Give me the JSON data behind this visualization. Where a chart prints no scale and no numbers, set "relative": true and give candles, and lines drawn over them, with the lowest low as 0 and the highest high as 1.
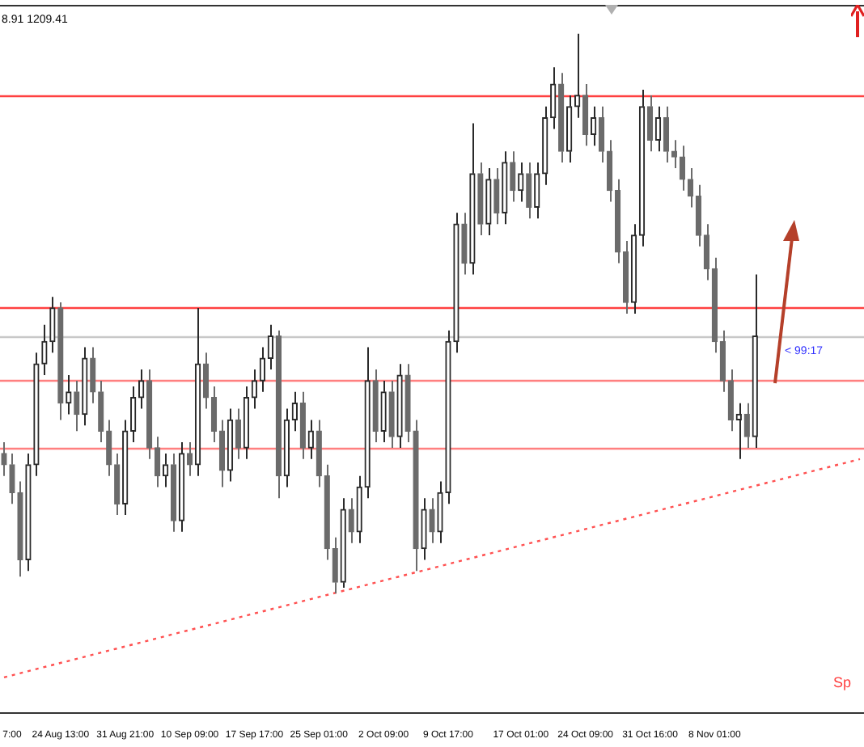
{
  "chart_data": {
    "type": "candlestick",
    "relative": true,
    "colors": [
      "#6b6b6b",
      "#6b6b6b",
      "#6b6b6b",
      "#2a2a2a",
      "#2a2a2a",
      "#2a2a2a",
      "#2a2a2a",
      "#6b6b6b",
      "#2a2a2a",
      "#6b6b6b",
      "#2a2a2a",
      "#6b6b6b",
      "#6b6b6b",
      "#6b6b6b",
      "#6b6b6b",
      "#2a2a2a",
      "#2a2a2a",
      "#2a2a2a",
      "#6b6b6b",
      "#6b6b6b",
      "#2a2a2a",
      "#6b6b6b",
      "#2a2a2a",
      "#6b6b6b",
      "#2a2a2a",
      "#6b6b6b",
      "#6b6b6b",
      "#6b6b6b",
      "#2a2a2a",
      "#6b6b6b",
      "#2a2a2a",
      "#2a2a2a",
      "#2a2a2a",
      "#2a2a2a",
      "#6b6b6b",
      "#2a2a2a",
      "#2a2a2a",
      "#6b6b6b",
      "#2a2a2a",
      "#6b6b6b",
      "#6b6b6b",
      "#6b6b6b",
      "#2a2a2a",
      "#6b6b6b",
      "#2a2a2a",
      "#2a2a2a",
      "#6b6b6b",
      "#2a2a2a",
      "#6b6b6b",
      "#2a2a2a",
      "#6b6b6b",
      "#6b6b6b",
      "#2a2a2a",
      "#6b6b6b",
      "#2a2a2a",
      "#2a2a2a",
      "#2a2a2a",
      "#6b6b6b",
      "#2a2a2a",
      "#6b6b6b",
      "#2a2a2a",
      "#6b6b6b",
      "#2a2a2a",
      "#6b6b6b",
      "#2a2a2a",
      "#6b6b6b",
      "#2a2a2a",
      "#2a2a2a",
      "#2a2a2a",
      "#6b6b6b",
      "#2a2a2a",
      "#2a2a2a",
      "#6b6b6b",
      "#2a2a2a",
      "#6b6b6b",
      "#6b6b6b",
      "#6b6b6b",
      "#6b6b6b",
      "#2a2a2a",
      "#2a2a2a",
      "#6b6b6b",
      "#2a2a2a",
      "#6b6b6b",
      "#6b6b6b",
      "#6b6b6b",
      "#6b6b6b",
      "#6b6b6b",
      "#6b6b6b",
      "#6b6b6b",
      "#6b6b6b",
      "#6b6b6b",
      "#2a2a2a",
      "#6b6b6b",
      "#2a2a2a",
      null,
      null,
      null,
      null,
      null,
      null,
      null,
      null,
      null,
      null,
      null,
      null,
      null
    ],
    "categories": [
      null,
      "7:00",
      null,
      null,
      null,
      null,
      null,
      "24 Aug 13:00",
      null,
      null,
      null,
      null,
      null,
      null,
      null,
      "31 Aug 21:00",
      null,
      null,
      null,
      null,
      null,
      null,
      null,
      "10 Sep 09:00",
      null,
      null,
      null,
      null,
      null,
      null,
      null,
      "17 Sep 17:00",
      null,
      null,
      null,
      null,
      null,
      null,
      null,
      "25 Sep 01:00",
      null,
      null,
      null,
      null,
      null,
      null,
      null,
      "2 Oct 09:00",
      null,
      null,
      null,
      null,
      null,
      null,
      null,
      "9 Oct 17:00",
      null,
      null,
      null,
      null,
      null,
      null,
      null,
      null,
      "17 Oct 01:00",
      null,
      null,
      null,
      null,
      null,
      null,
      null,
      "24 Oct 09:00",
      null,
      null,
      null,
      null,
      null,
      null,
      null,
      "31 Oct 16:00",
      null,
      null,
      null,
      null,
      null,
      null,
      null,
      "8 Nov 01:00",
      null,
      null,
      null,
      null,
      null,
      null,
      null,
      null,
      null,
      null,
      null,
      null,
      null,
      null,
      null,
      null,
      null,
      null
    ],
    "ohlc": [
      [
        0.25,
        0.27,
        0.21,
        0.23
      ],
      [
        0.23,
        0.25,
        0.16,
        0.18
      ],
      [
        0.18,
        0.2,
        0.03,
        0.06
      ],
      [
        0.06,
        0.25,
        0.04,
        0.23
      ],
      [
        0.23,
        0.43,
        0.21,
        0.41
      ],
      [
        0.41,
        0.48,
        0.39,
        0.45
      ],
      [
        0.45,
        0.53,
        0.43,
        0.51
      ],
      [
        0.51,
        0.52,
        0.31,
        0.34
      ],
      [
        0.34,
        0.39,
        0.32,
        0.36
      ],
      [
        0.36,
        0.38,
        0.29,
        0.32
      ],
      [
        0.32,
        0.44,
        0.3,
        0.42
      ],
      [
        0.42,
        0.44,
        0.34,
        0.36
      ],
      [
        0.36,
        0.38,
        0.27,
        0.29
      ],
      [
        0.29,
        0.31,
        0.21,
        0.23
      ],
      [
        0.23,
        0.25,
        0.14,
        0.16
      ],
      [
        0.16,
        0.31,
        0.14,
        0.29
      ],
      [
        0.29,
        0.37,
        0.27,
        0.35
      ],
      [
        0.35,
        0.4,
        0.33,
        0.38
      ],
      [
        0.38,
        0.4,
        0.24,
        0.26
      ],
      [
        0.26,
        0.28,
        0.19,
        0.21
      ],
      [
        0.21,
        0.25,
        0.19,
        0.23
      ],
      [
        0.23,
        0.25,
        0.11,
        0.13
      ],
      [
        0.13,
        0.27,
        0.11,
        0.25
      ],
      [
        0.25,
        0.27,
        0.21,
        0.23
      ],
      [
        0.23,
        0.51,
        0.21,
        0.41
      ],
      [
        0.41,
        0.43,
        0.33,
        0.35
      ],
      [
        0.35,
        0.37,
        0.27,
        0.29
      ],
      [
        0.29,
        0.31,
        0.19,
        0.22
      ],
      [
        0.22,
        0.33,
        0.2,
        0.31
      ],
      [
        0.31,
        0.33,
        0.24,
        0.26
      ],
      [
        0.26,
        0.37,
        0.24,
        0.35
      ],
      [
        0.35,
        0.4,
        0.33,
        0.38
      ],
      [
        0.38,
        0.44,
        0.36,
        0.42
      ],
      [
        0.42,
        0.48,
        0.4,
        0.46
      ],
      [
        0.46,
        0.47,
        0.17,
        0.21
      ],
      [
        0.21,
        0.33,
        0.19,
        0.31
      ],
      [
        0.31,
        0.36,
        0.29,
        0.34
      ],
      [
        0.34,
        0.36,
        0.24,
        0.26
      ],
      [
        0.26,
        0.31,
        0.24,
        0.29
      ],
      [
        0.29,
        0.31,
        0.19,
        0.21
      ],
      [
        0.21,
        0.23,
        0.06,
        0.08
      ],
      [
        0.08,
        0.1,
        0.0,
        0.02
      ],
      [
        0.02,
        0.17,
        0.01,
        0.15
      ],
      [
        0.15,
        0.17,
        0.09,
        0.11
      ],
      [
        0.11,
        0.21,
        0.09,
        0.19
      ],
      [
        0.19,
        0.44,
        0.17,
        0.38
      ],
      [
        0.38,
        0.4,
        0.27,
        0.29
      ],
      [
        0.29,
        0.38,
        0.27,
        0.36
      ],
      [
        0.36,
        0.38,
        0.26,
        0.28
      ],
      [
        0.28,
        0.41,
        0.26,
        0.39
      ],
      [
        0.39,
        0.41,
        0.27,
        0.29
      ],
      [
        0.29,
        0.31,
        0.04,
        0.08
      ],
      [
        0.08,
        0.17,
        0.06,
        0.15
      ],
      [
        0.15,
        0.17,
        0.09,
        0.11
      ],
      [
        0.11,
        0.2,
        0.09,
        0.18
      ],
      [
        0.18,
        0.47,
        0.16,
        0.45
      ],
      [
        0.45,
        0.68,
        0.43,
        0.66
      ],
      [
        0.66,
        0.68,
        0.57,
        0.59
      ],
      [
        0.59,
        0.84,
        0.57,
        0.75
      ],
      [
        0.75,
        0.77,
        0.64,
        0.66
      ],
      [
        0.66,
        0.76,
        0.64,
        0.74
      ],
      [
        0.74,
        0.76,
        0.66,
        0.68
      ],
      [
        0.68,
        0.79,
        0.66,
        0.77
      ],
      [
        0.77,
        0.79,
        0.7,
        0.72
      ],
      [
        0.72,
        0.77,
        0.7,
        0.75
      ],
      [
        0.75,
        0.77,
        0.67,
        0.69
      ],
      [
        0.69,
        0.77,
        0.67,
        0.75
      ],
      [
        0.75,
        0.87,
        0.73,
        0.85
      ],
      [
        0.85,
        0.94,
        0.83,
        0.91
      ],
      [
        0.91,
        0.93,
        0.77,
        0.79
      ],
      [
        0.79,
        0.89,
        0.77,
        0.87
      ],
      [
        0.87,
        1.0,
        0.85,
        0.89
      ],
      [
        0.89,
        0.91,
        0.8,
        0.82
      ],
      [
        0.82,
        0.87,
        0.8,
        0.85
      ],
      [
        0.85,
        0.87,
        0.77,
        0.79
      ],
      [
        0.79,
        0.81,
        0.7,
        0.72
      ],
      [
        0.72,
        0.74,
        0.59,
        0.61
      ],
      [
        0.61,
        0.63,
        0.5,
        0.52
      ],
      [
        0.52,
        0.66,
        0.5,
        0.64
      ],
      [
        0.64,
        0.9,
        0.62,
        0.87
      ],
      [
        0.87,
        0.89,
        0.79,
        0.81
      ],
      [
        0.81,
        0.87,
        0.79,
        0.85
      ],
      [
        0.85,
        0.87,
        0.77,
        0.79
      ],
      [
        0.79,
        0.81,
        0.76,
        0.78
      ],
      [
        0.78,
        0.8,
        0.72,
        0.74
      ],
      [
        0.74,
        0.76,
        0.69,
        0.71
      ],
      [
        0.71,
        0.73,
        0.62,
        0.64
      ],
      [
        0.64,
        0.66,
        0.56,
        0.58
      ],
      [
        0.58,
        0.6,
        0.43,
        0.45
      ],
      [
        0.45,
        0.47,
        0.36,
        0.38
      ],
      [
        0.38,
        0.4,
        0.29,
        0.31
      ],
      [
        0.31,
        0.34,
        0.24,
        0.32
      ],
      [
        0.32,
        0.34,
        0.26,
        0.28
      ],
      [
        0.28,
        0.57,
        0.26,
        0.46
      ],
      null,
      null,
      null,
      null,
      null,
      null,
      null,
      null,
      null,
      null,
      null,
      null,
      null
    ],
    "series": [
      {
        "type": "line",
        "color": "#ff5050",
        "line_style": "dotted",
        "values": [
          -0.15,
          null,
          null,
          null,
          null,
          null,
          null,
          null,
          null,
          null,
          null,
          null,
          null,
          null,
          null,
          null,
          null,
          null,
          null,
          null,
          null,
          null,
          null,
          null,
          null,
          null,
          null,
          null,
          null,
          null,
          null,
          null,
          null,
          null,
          null,
          null,
          null,
          null,
          null,
          null,
          null,
          null,
          null,
          null,
          null,
          null,
          null,
          null,
          null,
          null,
          null,
          null,
          null,
          null,
          null,
          null,
          null,
          null,
          null,
          null,
          null,
          null,
          null,
          null,
          null,
          null,
          null,
          null,
          null,
          null,
          null,
          null,
          null,
          null,
          null,
          null,
          null,
          null,
          null,
          null,
          null,
          null,
          null,
          null,
          null,
          null,
          null,
          null,
          null,
          null,
          null,
          null,
          null,
          null,
          null,
          null,
          null,
          null,
          null,
          null,
          null,
          null,
          null,
          null,
          null,
          null,
          0.24
        ]
      }
    ],
    "ref_lines": [
      {
        "axis": "y",
        "value": 0.89,
        "color": "#ff4040"
      },
      {
        "axis": "y",
        "value": 0.51,
        "color": "#ff4040"
      },
      {
        "axis": "y",
        "value": 0.46,
        "color": "#c8c8c8"
      },
      {
        "axis": "y",
        "value": 0.38,
        "color": "#ff8080"
      },
      {
        "axis": "y",
        "value": 0.26,
        "color": "#ff8080"
      }
    ],
    "annotations": [
      "8.91 1209.41",
      "< 99:17",
      "Sp"
    ]
  }
}
